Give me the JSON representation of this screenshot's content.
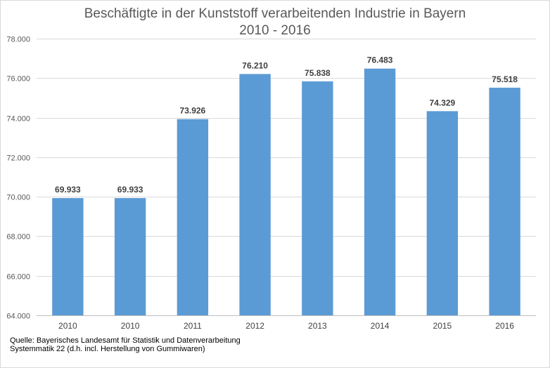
{
  "chart_data": {
    "type": "bar",
    "title": "Beschäftigte in der Kunststoff verarbeitenden Industrie in  Bayern",
    "subtitle": "2010 - 2016",
    "categories": [
      "2010",
      "2010",
      "2011",
      "2012",
      "2013",
      "2014",
      "2015",
      "2016"
    ],
    "values": [
      69933,
      69933,
      73926,
      76210,
      75838,
      76483,
      74329,
      75518
    ],
    "data_labels": [
      "69.933",
      "69.933",
      "73.926",
      "76.210",
      "75.838",
      "76.483",
      "74.329",
      "75.518"
    ],
    "ylim": [
      64000,
      78000
    ],
    "yticks": [
      64000,
      66000,
      68000,
      70000,
      72000,
      74000,
      76000,
      78000
    ],
    "ytick_labels": [
      "64.000",
      "66.000",
      "68.000",
      "70.000",
      "72.000",
      "74.000",
      "76.000",
      "78.000"
    ],
    "xlabel": "",
    "ylabel": "",
    "grid": true,
    "legend": "none",
    "bar_color": "#5b9bd5",
    "grid_color": "#d9d9d9"
  },
  "footer": {
    "line1": "Quelle:   Bayerisches Landesamt für Statistik und Datenverarbeitung",
    "line2": "Systemmatik 22 (d.h. incl. Herstellung von Gummiwaren)"
  }
}
